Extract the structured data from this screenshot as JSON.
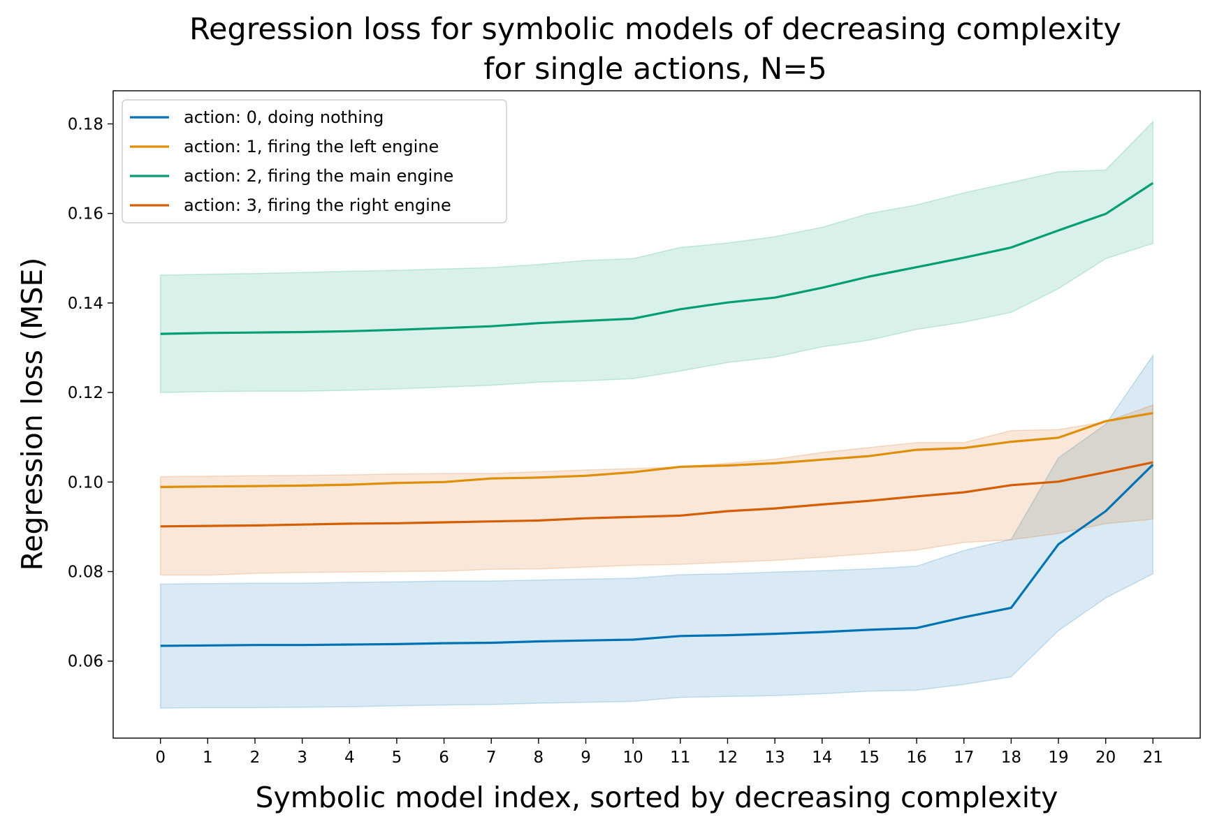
{
  "chart_data": {
    "type": "line",
    "title": [
      "Regression loss for symbolic models of decreasing complexity",
      "for single actions, N=5"
    ],
    "xlabel": "Symbolic model index, sorted by decreasing complexity",
    "ylabel": "Regression loss (MSE)",
    "xlim": [
      -1,
      22
    ],
    "ylim": [
      0.0428,
      0.1874
    ],
    "x": [
      0,
      1,
      2,
      3,
      4,
      5,
      6,
      7,
      8,
      9,
      10,
      11,
      12,
      13,
      14,
      15,
      16,
      17,
      18,
      19,
      20,
      21
    ],
    "xticks": [
      "0",
      "1",
      "2",
      "3",
      "4",
      "5",
      "6",
      "7",
      "8",
      "9",
      "10",
      "11",
      "12",
      "13",
      "14",
      "15",
      "16",
      "17",
      "18",
      "19",
      "20",
      "21"
    ],
    "yticks": [
      0.06,
      0.08,
      0.1,
      0.12,
      0.14,
      0.16,
      0.18
    ],
    "ytick_labels": [
      "0.06",
      "0.08",
      "0.10",
      "0.12",
      "0.14",
      "0.16",
      "0.18"
    ],
    "grid": false,
    "legend_position": "top-left",
    "series": [
      {
        "name": "action: 0, doing nothing",
        "color": "#0173b2",
        "values": [
          0.0634,
          0.0635,
          0.0636,
          0.0636,
          0.0637,
          0.0638,
          0.064,
          0.0641,
          0.0644,
          0.0646,
          0.0648,
          0.0656,
          0.0658,
          0.0661,
          0.0665,
          0.067,
          0.0674,
          0.0698,
          0.0719,
          0.0861,
          0.0935,
          0.1039
        ],
        "lower": [
          0.0495,
          0.0496,
          0.0496,
          0.0497,
          0.0498,
          0.05,
          0.0502,
          0.0503,
          0.0506,
          0.0508,
          0.051,
          0.0519,
          0.0521,
          0.0523,
          0.0527,
          0.0533,
          0.0535,
          0.0548,
          0.0565,
          0.0668,
          0.0741,
          0.0795
        ],
        "upper": [
          0.0772,
          0.0773,
          0.0774,
          0.0774,
          0.0776,
          0.0777,
          0.0779,
          0.0779,
          0.0781,
          0.0783,
          0.0785,
          0.0793,
          0.0795,
          0.0799,
          0.0802,
          0.0806,
          0.0812,
          0.0847,
          0.0872,
          0.1054,
          0.1129,
          0.1283
        ]
      },
      {
        "name": "action: 1, firing the left engine",
        "color": "#de8f05",
        "values": [
          0.0989,
          0.099,
          0.0991,
          0.0992,
          0.0994,
          0.0998,
          0.1,
          0.1008,
          0.101,
          0.1014,
          0.1022,
          0.1034,
          0.1037,
          0.1042,
          0.105,
          0.1058,
          0.1072,
          0.1076,
          0.109,
          0.1099,
          0.1136,
          0.1154
        ],
        "lower": [
          0.0902,
          0.0902,
          0.0903,
          0.0904,
          0.0905,
          0.0907,
          0.0912,
          0.0924,
          0.0927,
          0.0932,
          0.0937,
          0.0944,
          0.0949,
          0.0955,
          0.0964,
          0.097,
          0.0982,
          0.099,
          0.1002,
          0.1004,
          0.0999,
          0.0997
        ]
      },
      {
        "name": "action: 2, firing the main engine",
        "color": "#029e73",
        "values": [
          0.1331,
          0.1333,
          0.1334,
          0.1335,
          0.1337,
          0.134,
          0.1344,
          0.1348,
          0.1355,
          0.136,
          0.1365,
          0.1386,
          0.1401,
          0.1412,
          0.1434,
          0.1459,
          0.148,
          0.1501,
          0.1524,
          0.1562,
          0.1599,
          0.1668
        ],
        "lower": [
          0.12,
          0.1202,
          0.1203,
          0.1203,
          0.1205,
          0.1208,
          0.1212,
          0.1216,
          0.1223,
          0.1226,
          0.1231,
          0.1248,
          0.1267,
          0.1279,
          0.1302,
          0.1317,
          0.1341,
          0.1357,
          0.1379,
          0.1432,
          0.1499,
          0.1533
        ],
        "upper": [
          0.1462,
          0.1464,
          0.1466,
          0.1468,
          0.1471,
          0.1473,
          0.1476,
          0.1479,
          0.1486,
          0.1495,
          0.1499,
          0.1524,
          0.1534,
          0.1548,
          0.1569,
          0.16,
          0.1619,
          0.1646,
          0.1669,
          0.1693,
          0.1697,
          0.1805
        ]
      },
      {
        "name": "action: 3, firing the right engine",
        "color": "#d55e00",
        "values": [
          0.0901,
          0.0902,
          0.0903,
          0.0905,
          0.0907,
          0.0908,
          0.091,
          0.0912,
          0.0914,
          0.0919,
          0.0922,
          0.0925,
          0.0935,
          0.0941,
          0.095,
          0.0958,
          0.0968,
          0.0977,
          0.0993,
          0.1001,
          0.1022,
          0.1044
        ],
        "upper": [
          0.1012,
          0.1013,
          0.1014,
          0.1015,
          0.1016,
          0.1018,
          0.1019,
          0.1019,
          0.1023,
          0.1027,
          0.103,
          0.1034,
          0.1042,
          0.1051,
          0.1066,
          0.1077,
          0.1088,
          0.1088,
          0.1115,
          0.1117,
          0.1135,
          0.1172
        ],
        "lower": [
          0.0792,
          0.0792,
          0.0796,
          0.0798,
          0.0799,
          0.08,
          0.0801,
          0.0805,
          0.0806,
          0.081,
          0.0814,
          0.0816,
          0.0821,
          0.0825,
          0.0832,
          0.084,
          0.0848,
          0.0865,
          0.0871,
          0.0885,
          0.0907,
          0.0917
        ]
      }
    ]
  }
}
